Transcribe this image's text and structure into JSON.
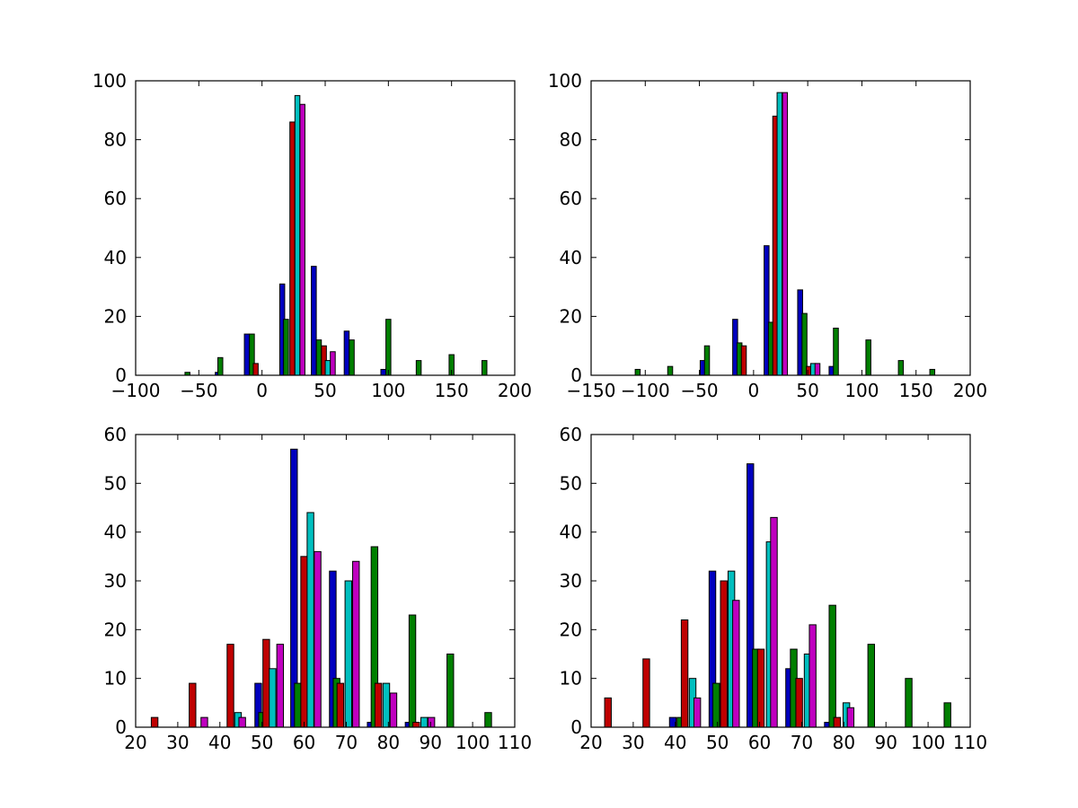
{
  "colors": {
    "blue": "#0000bf",
    "green": "#007f00",
    "red": "#bf0000",
    "cyan": "#00bfbf",
    "magenta": "#bf00bf",
    "background": "#ffffff",
    "axis": "#000000"
  },
  "chart_data": [
    {
      "type": "bar",
      "subplot": "top-left",
      "xlim": [
        -100,
        200
      ],
      "ylim": [
        0,
        100
      ],
      "xticks": [
        -100,
        -50,
        0,
        50,
        100,
        150,
        200
      ],
      "yticks": [
        0,
        20,
        40,
        60,
        80,
        100
      ],
      "xtick_labels": [
        "−100",
        "−50",
        "0",
        "50",
        "100",
        "150",
        "200"
      ],
      "ytick_labels": [
        "0",
        "20",
        "40",
        "60",
        "80",
        "100"
      ],
      "series": [
        {
          "color": "blue",
          "points": [
            [
              -62,
              0
            ],
            [
              -35,
              1
            ],
            [
              -12,
              14
            ],
            [
              16,
              31
            ],
            [
              41,
              37
            ],
            [
              67,
              15
            ],
            [
              96,
              2
            ]
          ]
        },
        {
          "color": "green",
          "points": [
            [
              -59,
              1
            ],
            [
              -33,
              6
            ],
            [
              -8,
              14
            ],
            [
              19,
              19
            ],
            [
              45,
              12
            ],
            [
              71,
              12
            ],
            [
              100,
              19
            ],
            [
              124,
              5
            ],
            [
              150,
              7
            ],
            [
              176,
              5
            ]
          ]
        },
        {
          "color": "red",
          "points": [
            [
              -5,
              4
            ],
            [
              24,
              86
            ],
            [
              49,
              10
            ]
          ]
        },
        {
          "color": "cyan",
          "points": [
            [
              28,
              95
            ],
            [
              52,
              5
            ]
          ]
        },
        {
          "color": "magenta",
          "points": [
            [
              32,
              92
            ],
            [
              56,
              8
            ]
          ]
        }
      ]
    },
    {
      "type": "bar",
      "subplot": "top-right",
      "xlim": [
        -150,
        200
      ],
      "ylim": [
        0,
        100
      ],
      "xticks": [
        -150,
        -100,
        -50,
        0,
        50,
        100,
        150,
        200
      ],
      "yticks": [
        0,
        20,
        40,
        60,
        80,
        100
      ],
      "xtick_labels": [
        "−150",
        "−100",
        "−50",
        "0",
        "50",
        "100",
        "150",
        "200"
      ],
      "ytick_labels": [
        "0",
        "20",
        "40",
        "60",
        "80",
        "100"
      ],
      "series": [
        {
          "color": "blue",
          "points": [
            [
              -47,
              5
            ],
            [
              -17,
              19
            ],
            [
              12,
              44
            ],
            [
              43,
              29
            ],
            [
              72,
              3
            ]
          ]
        },
        {
          "color": "green",
          "points": [
            [
              -107,
              2
            ],
            [
              -77,
              3
            ],
            [
              -43,
              10
            ],
            [
              -13,
              11
            ],
            [
              16,
              18
            ],
            [
              47,
              21
            ],
            [
              76,
              16
            ],
            [
              106,
              12
            ],
            [
              136,
              5
            ],
            [
              165,
              2
            ]
          ]
        },
        {
          "color": "red",
          "points": [
            [
              -9,
              10
            ],
            [
              20,
              88
            ],
            [
              51,
              3
            ]
          ]
        },
        {
          "color": "cyan",
          "points": [
            [
              24,
              96
            ],
            [
              55,
              4
            ]
          ]
        },
        {
          "color": "magenta",
          "points": [
            [
              29,
              96
            ],
            [
              59,
              4
            ]
          ]
        }
      ]
    },
    {
      "type": "bar",
      "subplot": "bottom-left",
      "xlim": [
        20,
        110
      ],
      "ylim": [
        0,
        60
      ],
      "xticks": [
        20,
        30,
        40,
        50,
        60,
        70,
        80,
        90,
        100,
        110
      ],
      "yticks": [
        0,
        10,
        20,
        30,
        40,
        50,
        60
      ],
      "xtick_labels": [
        "20",
        "30",
        "40",
        "50",
        "60",
        "70",
        "80",
        "90",
        "100",
        "110"
      ],
      "ytick_labels": [
        "0",
        "10",
        "20",
        "30",
        "40",
        "50",
        "60"
      ],
      "series": [
        {
          "color": "blue",
          "points": [
            [
              49.1,
              9
            ],
            [
              57.6,
              57
            ],
            [
              66.8,
              32
            ],
            [
              75.8,
              1
            ],
            [
              84.8,
              1
            ]
          ]
        },
        {
          "color": "green",
          "points": [
            [
              50,
              3
            ],
            [
              58.5,
              9
            ],
            [
              67.7,
              10
            ],
            [
              76.7,
              37
            ],
            [
              85.7,
              23
            ],
            [
              94.7,
              15
            ],
            [
              103.7,
              3
            ]
          ]
        },
        {
          "color": "red",
          "points": [
            [
              24.5,
              2
            ],
            [
              33.5,
              9
            ],
            [
              42.5,
              17
            ],
            [
              51,
              18
            ],
            [
              60,
              35
            ],
            [
              68.6,
              9
            ],
            [
              77.6,
              9
            ],
            [
              86.6,
              1
            ]
          ]
        },
        {
          "color": "cyan",
          "points": [
            [
              44.3,
              3
            ],
            [
              52.5,
              12
            ],
            [
              61.5,
              44
            ],
            [
              70.5,
              30
            ],
            [
              79.5,
              9
            ],
            [
              88.5,
              2
            ]
          ]
        },
        {
          "color": "magenta",
          "points": [
            [
              36.3,
              2
            ],
            [
              45.3,
              2
            ],
            [
              54.3,
              17
            ],
            [
              63.2,
              36
            ],
            [
              72.3,
              34
            ],
            [
              81.2,
              7
            ],
            [
              90.2,
              2
            ]
          ]
        }
      ]
    },
    {
      "type": "bar",
      "subplot": "bottom-right",
      "xlim": [
        20,
        110
      ],
      "ylim": [
        0,
        60
      ],
      "xticks": [
        20,
        30,
        40,
        50,
        60,
        70,
        80,
        90,
        100,
        110
      ],
      "yticks": [
        0,
        10,
        20,
        30,
        40,
        50,
        60
      ],
      "xtick_labels": [
        "20",
        "30",
        "40",
        "50",
        "60",
        "70",
        "80",
        "90",
        "100",
        "110"
      ],
      "ytick_labels": [
        "0",
        "10",
        "20",
        "30",
        "40",
        "50",
        "60"
      ],
      "series": [
        {
          "color": "blue",
          "points": [
            [
              39.4,
              2
            ],
            [
              48.8,
              32
            ],
            [
              57.8,
              54
            ],
            [
              67,
              12
            ],
            [
              76.2,
              1
            ]
          ]
        },
        {
          "color": "green",
          "points": [
            [
              41.2,
              2
            ],
            [
              49.7,
              9
            ],
            [
              59.1,
              16
            ],
            [
              68.1,
              16
            ],
            [
              77.3,
              25
            ],
            [
              86.5,
              17
            ],
            [
              95.4,
              10
            ],
            [
              104.6,
              5
            ]
          ]
        },
        {
          "color": "red",
          "points": [
            [
              24,
              6
            ],
            [
              33.1,
              14
            ],
            [
              42.2,
              22
            ],
            [
              51.5,
              30
            ],
            [
              60.3,
              16
            ],
            [
              69.4,
              10
            ],
            [
              78.4,
              2
            ]
          ]
        },
        {
          "color": "cyan",
          "points": [
            [
              44.1,
              10
            ],
            [
              53.3,
              32
            ],
            [
              62.4,
              38
            ],
            [
              71.4,
              15
            ],
            [
              80.6,
              5
            ]
          ]
        },
        {
          "color": "magenta",
          "points": [
            [
              45.2,
              6
            ],
            [
              54.4,
              26
            ],
            [
              63.4,
              43
            ],
            [
              72.6,
              21
            ],
            [
              81.6,
              4
            ]
          ]
        }
      ]
    }
  ]
}
